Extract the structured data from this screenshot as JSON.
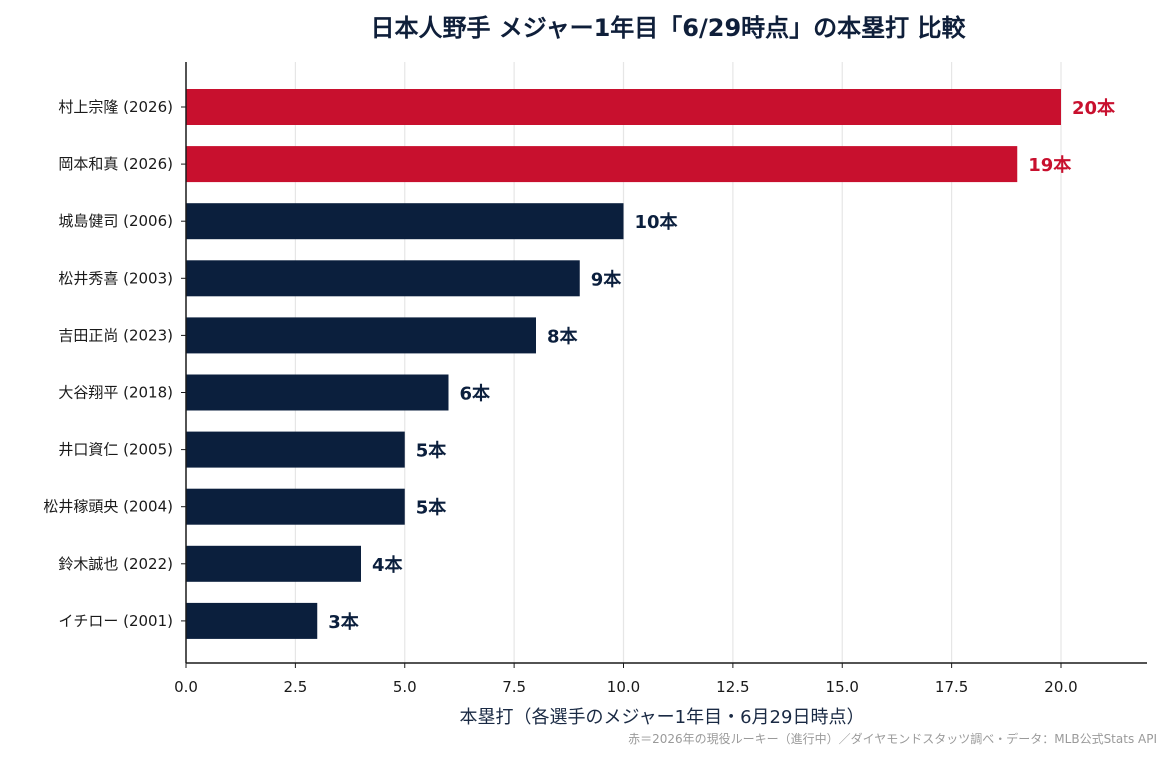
{
  "chart_data": {
    "type": "bar",
    "orientation": "horizontal",
    "title": "日本人野手 メジャー1年目「6/29時点」の本塁打 比較",
    "xlabel": "本塁打（各選手のメジャー1年目・6月29日時点）",
    "footnote": "赤＝2026年の現役ルーキー（進行中）／ダイヤモンドスタッツ調べ・データ：MLB公式Stats API",
    "categories": [
      "村上宗隆 (2026)",
      "岡本和真 (2026)",
      "城島健司 (2006)",
      "松井秀喜 (2003)",
      "吉田正尚 (2023)",
      "大谷翔平 (2018)",
      "井口資仁 (2005)",
      "松井稼頭央 (2004)",
      "鈴木誠也 (2022)",
      "イチロー (2001)"
    ],
    "values": [
      20,
      19,
      10,
      9,
      8,
      6,
      5,
      5,
      4,
      3
    ],
    "data_labels": [
      "20本",
      "19本",
      "10本",
      "9本",
      "8本",
      "6本",
      "5本",
      "5本",
      "4本",
      "3本"
    ],
    "highlight": [
      true,
      true,
      false,
      false,
      false,
      false,
      false,
      false,
      false,
      false
    ],
    "xlim": [
      0,
      22
    ],
    "xticks": [
      0,
      2.5,
      5,
      7.5,
      10,
      12.5,
      15,
      17.5,
      20
    ],
    "xtick_labels": [
      "0.0",
      "2.5",
      "5.0",
      "7.5",
      "10.0",
      "12.5",
      "15.0",
      "17.5",
      "20.0"
    ],
    "grid": "vertical",
    "colors": {
      "highlight": "#c8102e",
      "default": "#0b1f3d",
      "grid": "#e6e6e6",
      "axis": "#1a1a1a"
    }
  }
}
